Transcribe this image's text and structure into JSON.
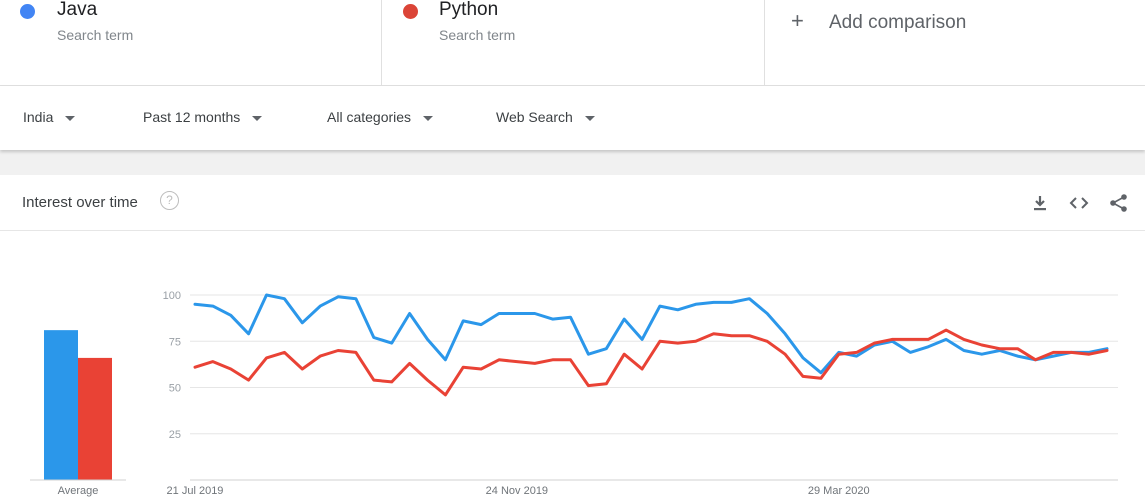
{
  "terms": [
    {
      "name": "Java",
      "sub": "Search term",
      "color": "#4285f4"
    },
    {
      "name": "Python",
      "sub": "Search term",
      "color": "#db4437"
    }
  ],
  "add_comparison": "Add comparison",
  "filters": {
    "region": "India",
    "period": "Past 12 months",
    "category": "All categories",
    "search_type": "Web Search"
  },
  "card": {
    "title": "Interest over time"
  },
  "chart_data": {
    "type": "line",
    "title": "Interest over time",
    "ylim": [
      0,
      100
    ],
    "yticks": [
      25,
      50,
      75,
      100
    ],
    "x_tick_labels": [
      "21 Jul 2019",
      "24 Nov 2019",
      "29 Mar 2020"
    ],
    "x_tick_indices": [
      0,
      18,
      36
    ],
    "grid": true,
    "series": [
      {
        "name": "Java",
        "color": "#2b97ea",
        "values": [
          95,
          94,
          89,
          79,
          100,
          98,
          85,
          94,
          99,
          98,
          77,
          74,
          90,
          76,
          65,
          86,
          84,
          90,
          90,
          90,
          87,
          88,
          68,
          71,
          87,
          76,
          94,
          92,
          95,
          96,
          96,
          98,
          90,
          79,
          66,
          58,
          69,
          67,
          73,
          75,
          69,
          72,
          76,
          70,
          68,
          70,
          67,
          65,
          67,
          69,
          69,
          71
        ]
      },
      {
        "name": "Python",
        "color": "#e94235",
        "values": [
          61,
          64,
          60,
          54,
          66,
          69,
          60,
          67,
          70,
          69,
          54,
          53,
          63,
          54,
          46,
          61,
          60,
          65,
          64,
          63,
          65,
          65,
          51,
          52,
          68,
          60,
          75,
          74,
          75,
          79,
          78,
          78,
          75,
          68,
          56,
          55,
          68,
          69,
          74,
          76,
          76,
          76,
          81,
          76,
          73,
          71,
          71,
          65,
          69,
          69,
          68,
          70
        ]
      }
    ],
    "averages": {
      "categories": [
        "Java",
        "Python"
      ],
      "values": [
        81,
        66
      ],
      "label": "Average"
    }
  }
}
